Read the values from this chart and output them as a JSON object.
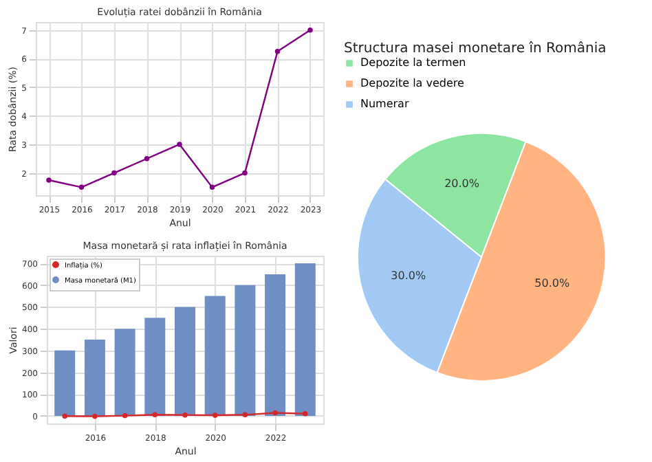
{
  "chart_data": [
    {
      "type": "line",
      "title": "Evoluția ratei dobânzii în România",
      "xlabel": "Anul",
      "ylabel": "Rata dobânzii (%)",
      "x": [
        2015,
        2016,
        2017,
        2018,
        2019,
        2020,
        2021,
        2022,
        2023
      ],
      "values": [
        1.75,
        1.5,
        2,
        2.5,
        3,
        1.5,
        2,
        6.25,
        7
      ],
      "color": "#800080",
      "xlim": [
        2014.6,
        2023.4
      ],
      "xticks": [
        2015,
        2016,
        2017,
        2018,
        2019,
        2020,
        2021,
        2022,
        2023
      ],
      "ylim": [
        1.22,
        7.28
      ],
      "yticks": [
        2,
        3,
        4,
        5,
        6,
        7
      ],
      "grid": true,
      "marker": "circle"
    },
    {
      "type": "bar",
      "title": "Masa monetară și rata inflației în România",
      "xlabel": "Anul",
      "ylabel": "Valori",
      "x": [
        2015,
        2016,
        2017,
        2018,
        2019,
        2020,
        2021,
        2022,
        2023
      ],
      "series": [
        {
          "name": "Inflația (%)",
          "type": "line",
          "color": "#d62728",
          "values": [
            -1,
            -2,
            1,
            5,
            4,
            3,
            5,
            14,
            10
          ]
        },
        {
          "name": "Masa monetară (M1)",
          "type": "bar",
          "color": "#6f8fc4",
          "values": [
            300,
            350,
            400,
            450,
            500,
            550,
            600,
            650,
            700
          ]
        }
      ],
      "xlim": [
        2014.4,
        2023.6
      ],
      "xticks": [
        2016,
        2018,
        2020,
        2022
      ],
      "ylim": [
        -35,
        735
      ],
      "yticks": [
        0,
        100,
        200,
        300,
        400,
        500,
        600,
        700
      ],
      "grid": true,
      "legend": "top left",
      "marker": "circle"
    },
    {
      "type": "pie",
      "title": "Structura masei monetare în România",
      "categories": [
        "Depozite la termen",
        "Depozite la vedere",
        "Numerar"
      ],
      "values": [
        20,
        50,
        30
      ],
      "colors": [
        "#8de5a1",
        "#ffb482",
        "#a1c9f4"
      ],
      "value_labels": [
        "20.0%",
        "50.0%",
        "30.0%"
      ],
      "legend": "top left"
    }
  ]
}
